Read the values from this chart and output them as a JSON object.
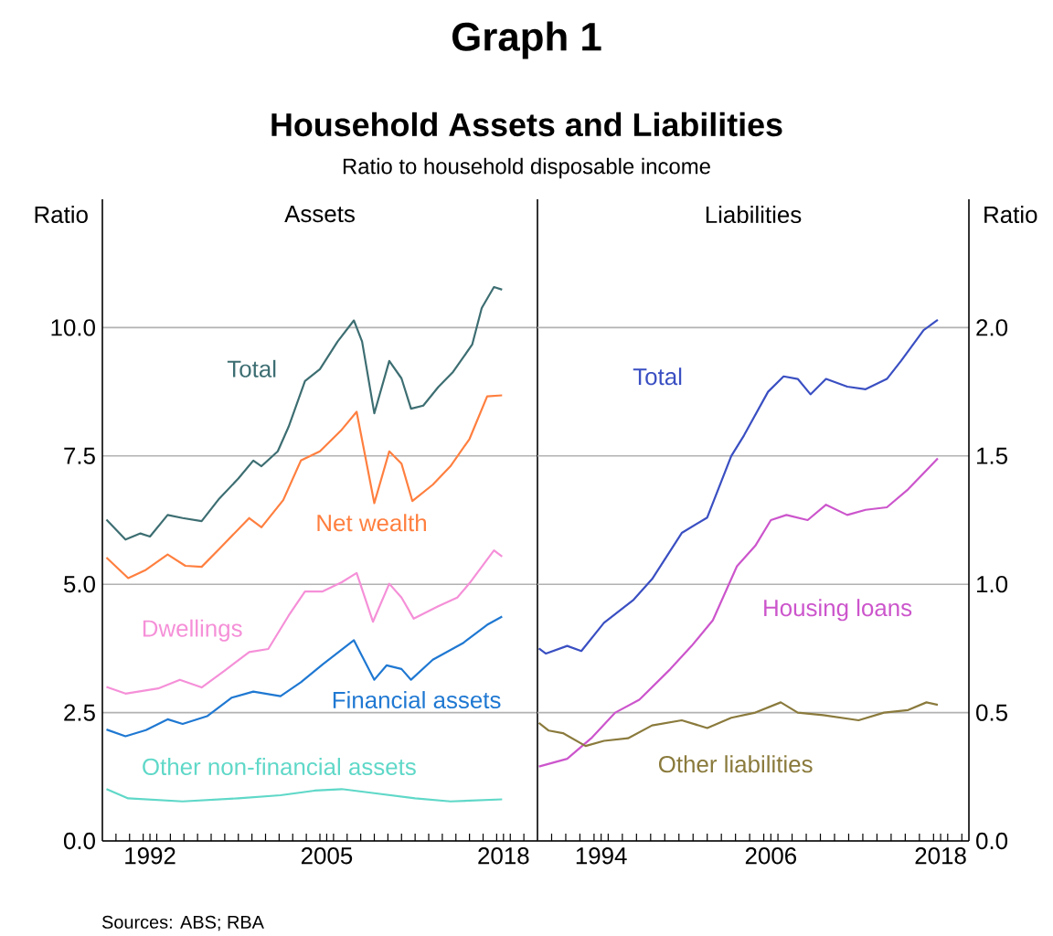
{
  "chart_data": [
    {
      "type": "line",
      "title": "Assets",
      "ylabel": "Ratio",
      "grid": "y",
      "annotations": [
        "Graph 1",
        "Household Assets and Liabilities",
        "Ratio to household disposable income",
        "Sources: ABS; RBA"
      ],
      "xlim": [
        1988.5,
        2020.5
      ],
      "ylim": [
        0,
        12.5
      ],
      "xticks": [
        {
          "value": 1989.5,
          "label": null
        },
        {
          "value": 1990.5,
          "label": null
        },
        {
          "value": 1991.5,
          "label": null
        },
        {
          "value": 1992.5,
          "label": null
        },
        {
          "value": 1993.5,
          "label": null
        },
        {
          "value": 1994.5,
          "label": null
        },
        {
          "value": 1995.5,
          "label": null
        },
        {
          "value": 1996.5,
          "label": null
        },
        {
          "value": 1997.5,
          "label": null
        },
        {
          "value": 1998.5,
          "label": null
        },
        {
          "value": 1999.5,
          "label": null
        },
        {
          "value": 2000.5,
          "label": null
        },
        {
          "value": 2001.5,
          "label": null
        },
        {
          "value": 2002.5,
          "label": null
        },
        {
          "value": 2003.5,
          "label": null
        },
        {
          "value": 2004.5,
          "label": null
        },
        {
          "value": 2005.5,
          "label": null
        },
        {
          "value": 2006.5,
          "label": null
        },
        {
          "value": 2007.5,
          "label": null
        },
        {
          "value": 2008.5,
          "label": null
        },
        {
          "value": 2009.5,
          "label": null
        },
        {
          "value": 2010.5,
          "label": null
        },
        {
          "value": 2011.5,
          "label": null
        },
        {
          "value": 2012.5,
          "label": null
        },
        {
          "value": 2013.5,
          "label": null
        },
        {
          "value": 2014.5,
          "label": null
        },
        {
          "value": 2015.5,
          "label": null
        },
        {
          "value": 2016.5,
          "label": null
        },
        {
          "value": 2017.5,
          "label": null
        },
        {
          "value": 2018.5,
          "label": null
        },
        {
          "value": 2019.5,
          "label": null
        },
        1992,
        2005,
        2018
      ],
      "yticks": [
        {
          "value": 0,
          "label": "0.0"
        },
        2.5,
        {
          "value": 5,
          "label": "5.0"
        },
        7.5,
        {
          "value": 10,
          "label": "10.0"
        }
      ],
      "series": [
        {
          "name": "Total",
          "color": "#3d6e72",
          "x": [
            1988.8,
            1990.2,
            1991.3,
            1992.0,
            1993.3,
            1994.4,
            1995.8,
            1997.1,
            1998.5,
            1999.6,
            2000.2,
            2001.4,
            2002.2,
            2003.4,
            2004.5,
            2005.8,
            2007.0,
            2007.6,
            2008.5,
            2009.6,
            2010.5,
            2011.2,
            2012.1,
            2013.2,
            2014.3,
            2015.7,
            2016.4,
            2017.3,
            2017.9
          ],
          "values": [
            6.26,
            5.87,
            5.99,
            5.93,
            6.35,
            6.29,
            6.23,
            6.67,
            7.06,
            7.41,
            7.3,
            7.59,
            8.07,
            8.96,
            9.19,
            9.73,
            10.14,
            9.73,
            8.33,
            9.35,
            9.01,
            8.42,
            8.48,
            8.84,
            9.14,
            9.67,
            10.38,
            10.79,
            10.74
          ]
        },
        {
          "name": "Net wealth",
          "color": "#ff7f3f",
          "x": [
            1988.8,
            1990.4,
            1991.7,
            1993.3,
            1994.6,
            1995.8,
            1997.1,
            1999.3,
            2000.2,
            2001.8,
            2003.1,
            2004.5,
            2006.1,
            2007.2,
            2008.5,
            2009.6,
            2010.5,
            2011.3,
            2012.8,
            2014.1,
            2015.5,
            2016.8,
            2017.9
          ],
          "values": [
            5.52,
            5.12,
            5.28,
            5.58,
            5.36,
            5.34,
            5.69,
            6.29,
            6.11,
            6.64,
            7.41,
            7.59,
            8.01,
            8.36,
            6.58,
            7.59,
            7.35,
            6.62,
            6.94,
            7.3,
            7.83,
            8.66,
            8.68
          ]
        },
        {
          "name": "Dwellings",
          "color": "#f590d8",
          "x": [
            1988.8,
            1990.2,
            1992.6,
            1994.2,
            1995.8,
            1997.5,
            1999.3,
            2000.7,
            2002.2,
            2003.4,
            2004.7,
            2006.1,
            2007.2,
            2008.4,
            2009.6,
            2010.5,
            2011.4,
            2013.2,
            2014.6,
            2015.5,
            2017.3,
            2017.9
          ],
          "values": [
            3.0,
            2.87,
            2.97,
            3.14,
            2.99,
            3.32,
            3.68,
            3.74,
            4.39,
            4.86,
            4.86,
            5.04,
            5.22,
            4.27,
            5.01,
            4.74,
            4.33,
            4.57,
            4.74,
            5.02,
            5.66,
            5.54
          ]
        },
        {
          "name": "Financial assets",
          "color": "#1f78d2",
          "x": [
            1988.8,
            1990.2,
            1991.7,
            1993.3,
            1994.4,
            1996.2,
            1998.0,
            1999.6,
            2001.6,
            2003.1,
            2004.7,
            2007.0,
            2008.5,
            2009.4,
            2010.5,
            2011.2,
            2012.8,
            2015.0,
            2016.8,
            2017.9
          ],
          "values": [
            2.17,
            2.04,
            2.16,
            2.37,
            2.28,
            2.43,
            2.79,
            2.91,
            2.82,
            3.09,
            3.44,
            3.91,
            3.14,
            3.42,
            3.35,
            3.14,
            3.53,
            3.85,
            4.21,
            4.37
          ]
        },
        {
          "name": "Other non-financial assets",
          "color": "#5fd8c8",
          "x": [
            1988.8,
            1990.4,
            1994.4,
            1998.5,
            2001.6,
            2004.1,
            2006.1,
            2008.5,
            2011.5,
            2014.1,
            2017.9
          ],
          "values": [
            1.01,
            0.83,
            0.77,
            0.83,
            0.89,
            0.98,
            1.01,
            0.93,
            0.83,
            0.77,
            0.81
          ]
        }
      ]
    },
    {
      "type": "line",
      "title": "Liabilities",
      "ylabel": "Ratio",
      "grid": "y",
      "xlim": [
        1989.5,
        2020
      ],
      "ylim": [
        0,
        2.5
      ],
      "xticks": [
        {
          "value": 1990.5,
          "label": null
        },
        {
          "value": 1991.5,
          "label": null
        },
        {
          "value": 1992.5,
          "label": null
        },
        {
          "value": 1993.5,
          "label": null
        },
        {
          "value": 1994.5,
          "label": null
        },
        {
          "value": 1995.5,
          "label": null
        },
        {
          "value": 1996.5,
          "label": null
        },
        {
          "value": 1997.5,
          "label": null
        },
        {
          "value": 1998.5,
          "label": null
        },
        {
          "value": 1999.5,
          "label": null
        },
        {
          "value": 2000.5,
          "label": null
        },
        {
          "value": 2001.5,
          "label": null
        },
        {
          "value": 2002.5,
          "label": null
        },
        {
          "value": 2003.5,
          "label": null
        },
        {
          "value": 2004.5,
          "label": null
        },
        {
          "value": 2005.5,
          "label": null
        },
        {
          "value": 2006.5,
          "label": null
        },
        {
          "value": 2007.5,
          "label": null
        },
        {
          "value": 2008.5,
          "label": null
        },
        {
          "value": 2009.5,
          "label": null
        },
        {
          "value": 2010.5,
          "label": null
        },
        {
          "value": 2011.5,
          "label": null
        },
        {
          "value": 2012.5,
          "label": null
        },
        {
          "value": 2013.5,
          "label": null
        },
        {
          "value": 2014.5,
          "label": null
        },
        {
          "value": 2015.5,
          "label": null
        },
        {
          "value": 2016.5,
          "label": null
        },
        {
          "value": 2017.5,
          "label": null
        },
        {
          "value": 2018.5,
          "label": null
        },
        {
          "value": 2019.5,
          "label": null
        },
        1994,
        2006,
        2018
      ],
      "yticks": [
        {
          "value": 0,
          "label": "0.0"
        },
        0.5,
        {
          "value": 1,
          "label": "1.0"
        },
        1.5,
        {
          "value": 2,
          "label": "2.0"
        }
      ],
      "series": [
        {
          "name": "Total",
          "color": "#3a4fc2",
          "x": [
            1989.6,
            1990.1,
            1991.6,
            1992.6,
            1994.2,
            1996.3,
            1997.6,
            1999.7,
            2001.5,
            2003.2,
            2004.1,
            2005.8,
            2006.9,
            2007.9,
            2008.8,
            2009.9,
            2011.4,
            2012.7,
            2014.2,
            2015.2,
            2016.8,
            2017.8
          ],
          "values": [
            0.75,
            0.73,
            0.76,
            0.74,
            0.85,
            0.94,
            1.02,
            1.2,
            1.26,
            1.5,
            1.58,
            1.75,
            1.81,
            1.8,
            1.74,
            1.8,
            1.77,
            1.76,
            1.8,
            1.87,
            1.99,
            2.03
          ]
        },
        {
          "name": "Housing loans",
          "color": "#cc55cc",
          "x": [
            1989.6,
            1991.6,
            1993.3,
            1995.0,
            1996.7,
            1998.9,
            2000.4,
            2001.9,
            2003.6,
            2004.9,
            2006.0,
            2007.1,
            2008.6,
            2009.9,
            2011.4,
            2012.7,
            2014.2,
            2015.7,
            2017.8
          ],
          "values": [
            0.29,
            0.32,
            0.4,
            0.5,
            0.55,
            0.67,
            0.76,
            0.86,
            1.07,
            1.15,
            1.25,
            1.27,
            1.25,
            1.31,
            1.27,
            1.29,
            1.3,
            1.37,
            1.49
          ]
        },
        {
          "name": "Other liabilities",
          "color": "#8a7a3c",
          "x": [
            1989.6,
            1990.3,
            1991.3,
            1992.9,
            1994.2,
            1995.9,
            1997.6,
            1999.7,
            2001.5,
            2003.2,
            2004.9,
            2006.7,
            2007.9,
            2009.7,
            2012.2,
            2014.0,
            2015.7,
            2017.0,
            2017.8
          ],
          "values": [
            0.46,
            0.43,
            0.42,
            0.37,
            0.39,
            0.4,
            0.45,
            0.47,
            0.44,
            0.48,
            0.5,
            0.54,
            0.5,
            0.49,
            0.47,
            0.5,
            0.51,
            0.54,
            0.53
          ]
        }
      ]
    }
  ]
}
